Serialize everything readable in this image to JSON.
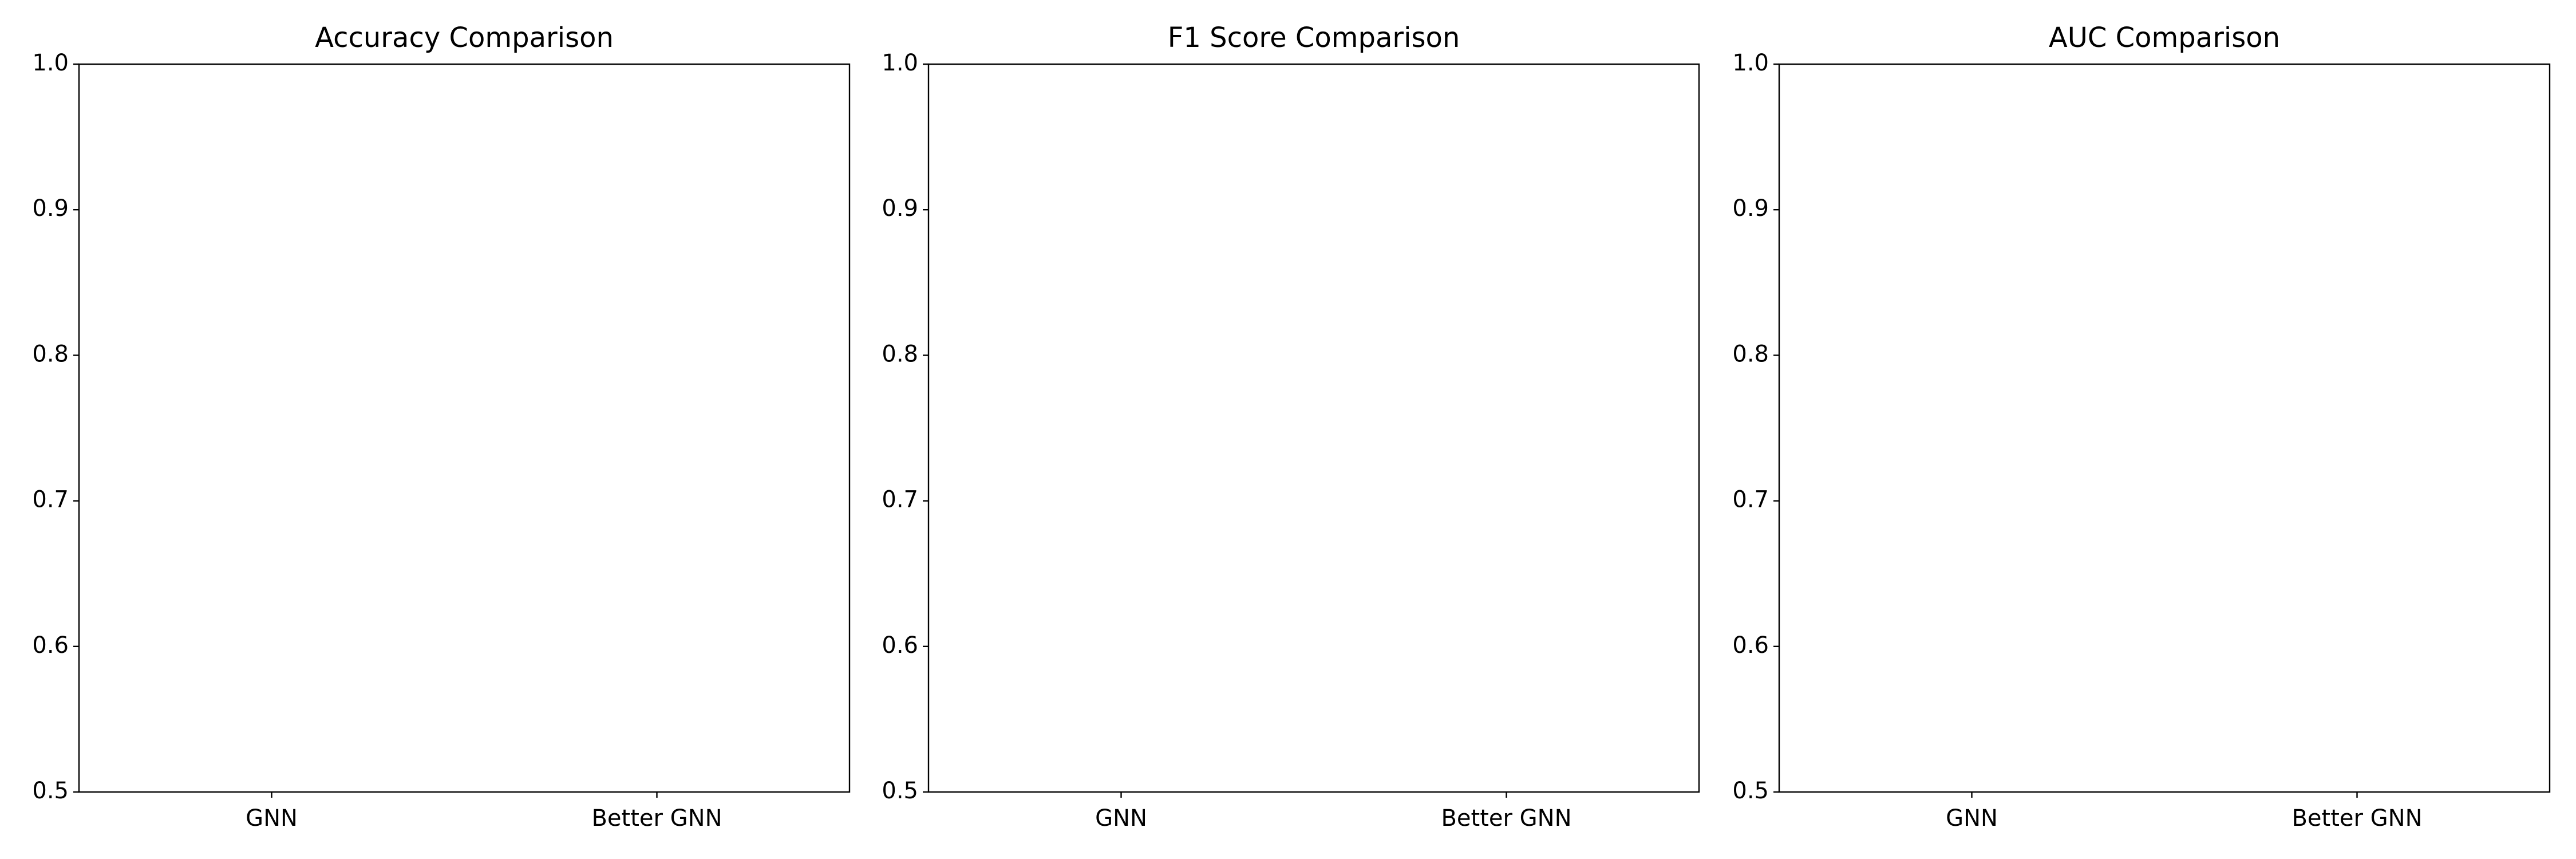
{
  "chart_data": [
    {
      "type": "bar",
      "title": "Accuracy Comparison",
      "categories": [
        "GNN",
        "Better GNN"
      ],
      "ylim": [
        0.5,
        1.0
      ],
      "yticks": [
        0.5,
        0.6,
        0.7,
        0.8,
        0.9,
        {
          "value": 1.0,
          "label": "1.0"
        }
      ],
      "grid": false
    },
    {
      "type": "bar",
      "title": "F1 Score Comparison",
      "categories": [
        "GNN",
        "Better GNN"
      ],
      "ylim": [
        0.5,
        1.0
      ],
      "yticks": [
        0.5,
        0.6,
        0.7,
        0.8,
        0.9,
        {
          "value": 1.0,
          "label": "1.0"
        }
      ],
      "grid": false
    },
    {
      "type": "bar",
      "title": "AUC Comparison",
      "categories": [
        "GNN",
        "Better GNN"
      ],
      "ylim": [
        0.5,
        1.0
      ],
      "yticks": [
        0.5,
        0.6,
        0.7,
        0.8,
        0.9,
        {
          "value": 1.0,
          "label": "1.0"
        }
      ],
      "grid": false
    }
  ]
}
